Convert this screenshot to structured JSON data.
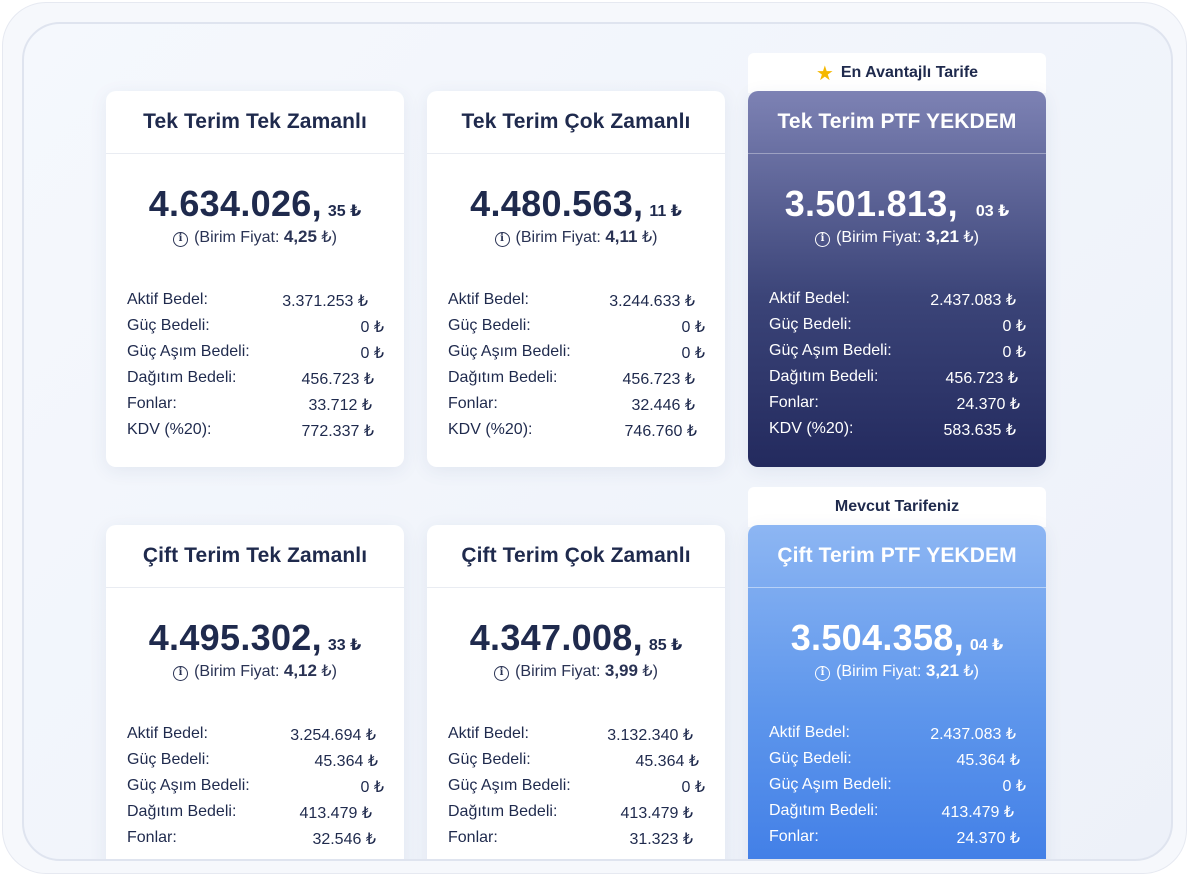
{
  "badges": {
    "best": "En Avantajlı Tarife",
    "current": "Mevcut Tarifeniz"
  },
  "labels": {
    "unit_prefix": "(Birim Fiyat:",
    "unit_suffix": "₺)",
    "info": "i"
  },
  "cards": [
    {
      "title": "Tek Terim Tek Zamanlı",
      "total_main": "4.634.026,",
      "total_cents": "35 ₺",
      "unit_price": "4,25",
      "rows": [
        {
          "label": "Aktif Bedel:",
          "value": "3.371.253 ₺"
        },
        {
          "label": "Güç Bedeli:",
          "value": "0 ₺"
        },
        {
          "label": "Güç Aşım Bedeli:",
          "value": "0 ₺"
        },
        {
          "label": "Dağıtım Bedeli:",
          "value": "456.723 ₺"
        },
        {
          "label": "Fonlar:",
          "value": "33.712 ₺"
        },
        {
          "label": "KDV (%20):",
          "value": "772.337 ₺"
        }
      ]
    },
    {
      "title": "Tek Terim Çok Zamanlı",
      "total_main": "4.480.563,",
      "total_cents": "11 ₺",
      "unit_price": "4,11",
      "rows": [
        {
          "label": "Aktif Bedel:",
          "value": "3.244.633 ₺"
        },
        {
          "label": "Güç Bedeli:",
          "value": "0 ₺"
        },
        {
          "label": "Güç Aşım Bedeli:",
          "value": "0 ₺"
        },
        {
          "label": "Dağıtım Bedeli:",
          "value": "456.723 ₺"
        },
        {
          "label": "Fonlar:",
          "value": "32.446 ₺"
        },
        {
          "label": "KDV (%20):",
          "value": "746.760 ₺"
        }
      ]
    },
    {
      "title": "Tek Terim PTF YEKDEM",
      "total_main": "3.501.813,",
      "total_cents": "03 ₺",
      "unit_price": "3,21",
      "rows": [
        {
          "label": "Aktif Bedel:",
          "value": "2.437.083 ₺"
        },
        {
          "label": "Güç Bedeli:",
          "value": "0 ₺"
        },
        {
          "label": "Güç Aşım Bedeli:",
          "value": "0 ₺"
        },
        {
          "label": "Dağıtım Bedeli:",
          "value": "456.723 ₺"
        },
        {
          "label": "Fonlar:",
          "value": "24.370 ₺"
        },
        {
          "label": "KDV (%20):",
          "value": "583.635 ₺"
        }
      ]
    },
    {
      "title": "Çift Terim Tek Zamanlı",
      "total_main": "4.495.302,",
      "total_cents": "33 ₺",
      "unit_price": "4,12",
      "rows": [
        {
          "label": "Aktif Bedel:",
          "value": "3.254.694 ₺"
        },
        {
          "label": "Güç Bedeli:",
          "value": "45.364 ₺"
        },
        {
          "label": "Güç Aşım Bedeli:",
          "value": "0 ₺"
        },
        {
          "label": "Dağıtım Bedeli:",
          "value": "413.479 ₺"
        },
        {
          "label": "Fonlar:",
          "value": "32.546 ₺"
        }
      ]
    },
    {
      "title": "Çift Terim Çok Zamanlı",
      "total_main": "4.347.008,",
      "total_cents": "85 ₺",
      "unit_price": "3,99",
      "rows": [
        {
          "label": "Aktif Bedel:",
          "value": "3.132.340 ₺"
        },
        {
          "label": "Güç Bedeli:",
          "value": "45.364 ₺"
        },
        {
          "label": "Güç Aşım Bedeli:",
          "value": "0 ₺"
        },
        {
          "label": "Dağıtım Bedeli:",
          "value": "413.479 ₺"
        },
        {
          "label": "Fonlar:",
          "value": "31.323 ₺"
        }
      ]
    },
    {
      "title": "Çift Terim PTF YEKDEM",
      "total_main": "3.504.358,",
      "total_cents": "04 ₺",
      "unit_price": "3,21",
      "rows": [
        {
          "label": "Aktif Bedel:",
          "value": "2.437.083 ₺"
        },
        {
          "label": "Güç Bedeli:",
          "value": "45.364 ₺"
        },
        {
          "label": "Güç Aşım Bedeli:",
          "value": "0 ₺"
        },
        {
          "label": "Dağıtım Bedeli:",
          "value": "413.479 ₺"
        },
        {
          "label": "Fonlar:",
          "value": "24.370 ₺"
        }
      ]
    }
  ]
}
